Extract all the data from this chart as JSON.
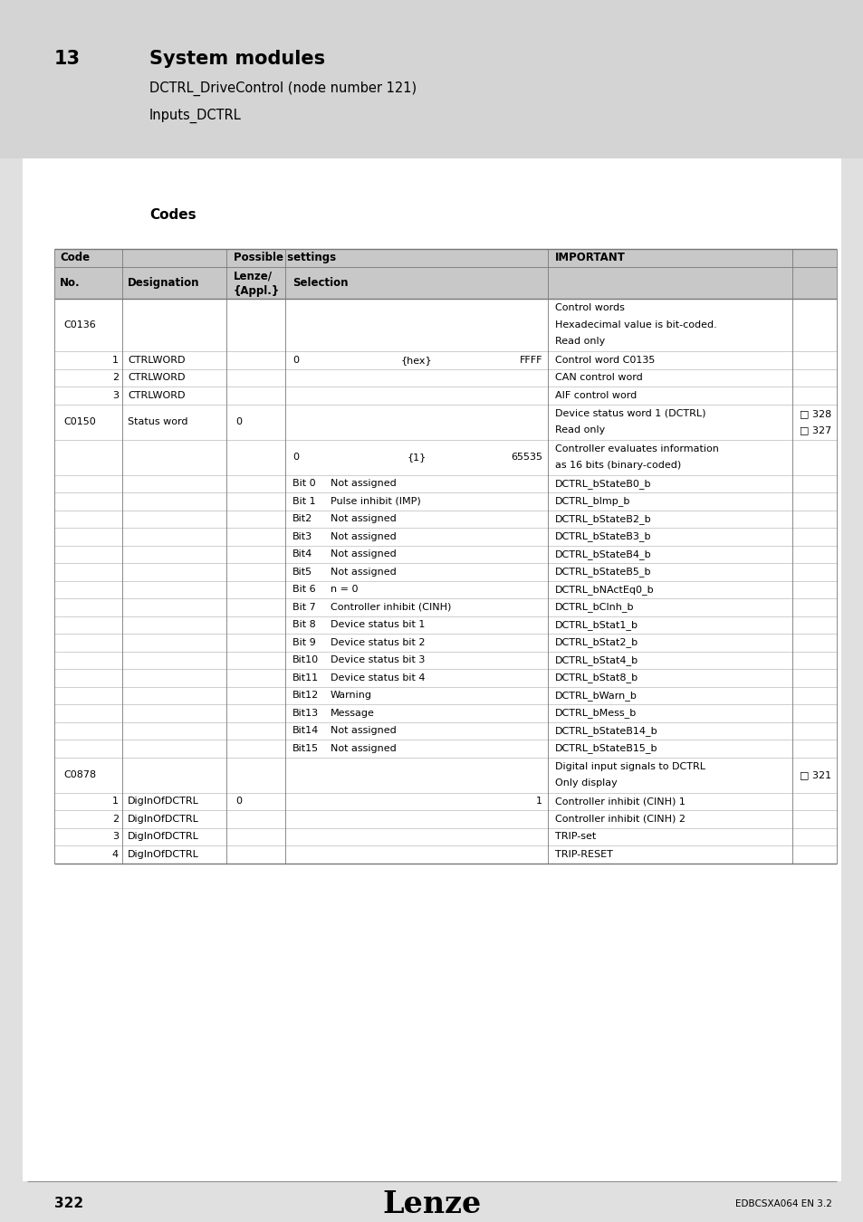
{
  "page_bg": "#e0e0e0",
  "header_bg": "#d4d4d4",
  "white": "#ffffff",
  "table_header_bg": "#c8c8c8",
  "chapter_num": "13",
  "chapter_title": "System modules",
  "chapter_sub1": "DCTRL_DriveControl (node number 121)",
  "chapter_sub2": "Inputs_DCTRL",
  "section_title": "Codes",
  "footer_page": "322",
  "footer_logo": "Lenze",
  "footer_doc": "EDBCSXA064 EN 3.2",
  "font_size": 8.0,
  "font_size_hdr": 8.5
}
